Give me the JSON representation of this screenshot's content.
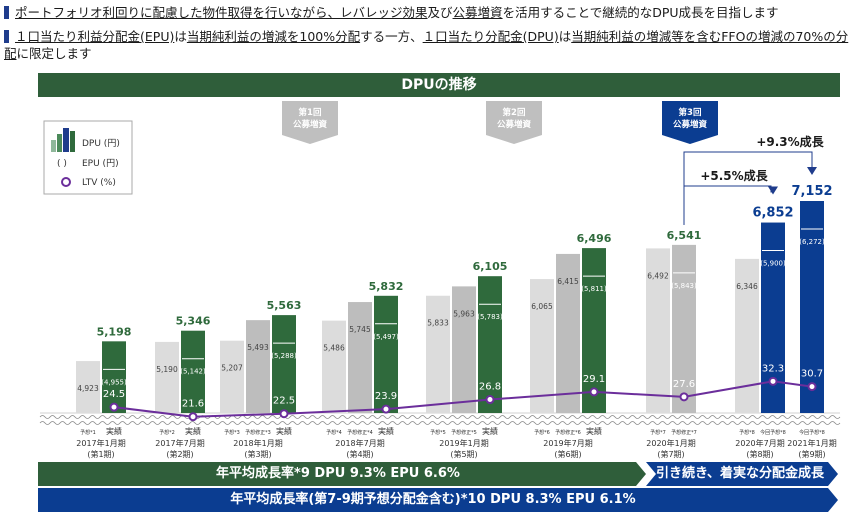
{
  "header": {
    "line1": {
      "parts": [
        "ポートフォリオ利回りに配慮した物件取得を行いながら、",
        "レバレッジ効果",
        "及び",
        "公募増資",
        "を活用することで継続的なDPU成長を目指します"
      ]
    },
    "line2": {
      "parts": [
        "１口当たり利益分配金(EPU)",
        "は",
        "当期純利益の増減を100%分配",
        "する一方、",
        "１口当たり分配金(DPU)",
        "は",
        "当期純利益の増減等を含むFFOの増減の70%の分配",
        "に限定します"
      ]
    }
  },
  "chart_data": {
    "type": "bar",
    "title": "DPUの推移",
    "legend": [
      {
        "label": "DPU (円)",
        "icon": "bar-gradient"
      },
      {
        "label": "EPU (円)",
        "icon": "parentheses"
      },
      {
        "label": "LTV (%)",
        "icon": "circle-marker"
      }
    ],
    "offerings": [
      {
        "label": "第1回\n公募増資",
        "line1": "第1回",
        "line2": "公募増資",
        "color": "#bfbfbf"
      },
      {
        "label": "第2回\n公募増資",
        "line1": "第2回",
        "line2": "公募増資",
        "color": "#bfbfbf"
      },
      {
        "label": "第3回\n公募増資",
        "line1": "第3回",
        "line2": "公募増資",
        "color": "#0b3d91"
      }
    ],
    "periods": [
      {
        "label": "2017年1月期",
        "period": "(第1期)",
        "bars": [
          {
            "tag": "予想*1",
            "value": 4923,
            "kind": "forecast"
          },
          {
            "tag": "実績",
            "value": 5198,
            "epu": "(4,955)",
            "kind": "actual"
          }
        ],
        "ltv": 24.5
      },
      {
        "label": "2017年7月期",
        "period": "(第2期)",
        "bars": [
          {
            "tag": "予想*2",
            "value": 5190,
            "kind": "forecast"
          },
          {
            "tag": "実績",
            "value": 5346,
            "epu": "(5,142)",
            "kind": "actual"
          }
        ],
        "ltv": 21.6
      },
      {
        "label": "2018年1月期",
        "period": "(第3期)",
        "bars": [
          {
            "tag": "予想*3",
            "value": 5207,
            "kind": "forecast"
          },
          {
            "tag": "予想修正*3",
            "value": 5493,
            "kind": "revised"
          },
          {
            "tag": "実績",
            "value": 5563,
            "epu": "(5,288)",
            "kind": "actual"
          }
        ],
        "ltv": 22.5
      },
      {
        "label": "2018年7月期",
        "period": "(第4期)",
        "bars": [
          {
            "tag": "予想*4",
            "value": 5486,
            "kind": "forecast"
          },
          {
            "tag": "予想修正*4",
            "value": 5745,
            "kind": "revised"
          },
          {
            "tag": "実績",
            "value": 5832,
            "epu": "(5,497)",
            "kind": "actual"
          }
        ],
        "ltv": 23.9
      },
      {
        "label": "2019年1月期",
        "period": "(第5期)",
        "bars": [
          {
            "tag": "予想*5",
            "value": 5833,
            "kind": "forecast"
          },
          {
            "tag": "予想修正*5",
            "value": 5963,
            "kind": "revised"
          },
          {
            "tag": "実績",
            "value": 6105,
            "epu": "(5,783)",
            "kind": "actual"
          }
        ],
        "ltv": 26.8
      },
      {
        "label": "2019年7月期",
        "period": "(第6期)",
        "bars": [
          {
            "tag": "予想*6",
            "value": 6065,
            "kind": "forecast"
          },
          {
            "tag": "予想修正*6",
            "value": 6415,
            "kind": "revised"
          },
          {
            "tag": "実績",
            "value": 6496,
            "epu": "(5,811)",
            "kind": "actual"
          }
        ],
        "ltv": 29.1
      },
      {
        "label": "2020年1月期",
        "period": "(第7期)",
        "bars": [
          {
            "tag": "予想*7",
            "value": 6492,
            "kind": "forecast"
          },
          {
            "tag": "予想修正*7",
            "value": 6541,
            "epu": "(5,843)",
            "kind": "revised",
            "labeled": true
          }
        ],
        "ltv": 27.6
      },
      {
        "label": "2020年7月期",
        "period": "(第8期)",
        "bars": [
          {
            "tag": "予想*8",
            "value": 6346,
            "kind": "forecast"
          },
          {
            "tag": "今回予想*8",
            "value": 6852,
            "epu": "(5,900)",
            "kind": "new"
          }
        ],
        "ltv": 32.3
      },
      {
        "label": "2021年1月期",
        "period": "(第9期)",
        "bars": [
          {
            "tag": "今回予想*8",
            "value": 7152,
            "epu": "(6,272)",
            "kind": "new"
          }
        ],
        "ltv": 30.7
      }
    ],
    "growth_callouts": [
      "+5.5%成長",
      "+9.3%成長"
    ],
    "footer_bars": [
      "年平均成長率*9 DPU 9.3%  EPU 6.6%",
      "引き続き、着実な分配金成長",
      "年平均成長率(第7-9期予想分配金含む)*10 DPU 8.3%  EPU 6.1%"
    ],
    "colors": {
      "actual": "#2f6a3c",
      "forecast": "#dcdcdc",
      "revised": "#bdbdbd",
      "new": "#0b3d91",
      "ltv": "#6b2e9b",
      "banner": "#2f5e3a"
    }
  }
}
